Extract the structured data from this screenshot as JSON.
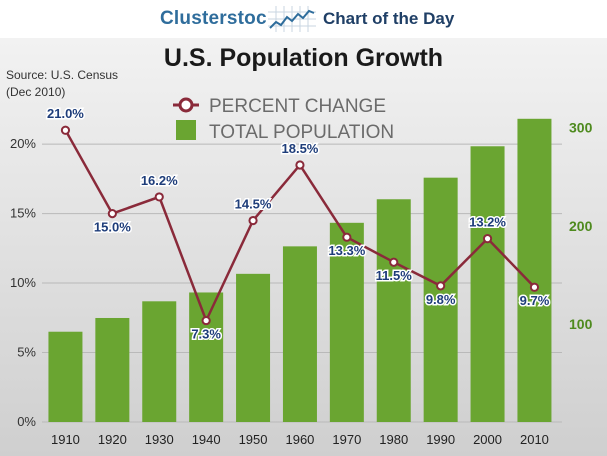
{
  "header": {
    "brand": "Clusterstock",
    "subtitle": "Chart of the Day"
  },
  "colors": {
    "bar": "#6aa531",
    "line": "#8a2a3a",
    "label": "#1e3d7a",
    "right_axis": "#4e8a1e",
    "left_axis": "#333333"
  },
  "chart_data": {
    "type": "bar",
    "title": "U.S. Population Growth",
    "source_line1": "Source: U.S. Census",
    "source_line2": "(Dec 2010)",
    "categories": [
      "1910",
      "1920",
      "1930",
      "1940",
      "1950",
      "1960",
      "1970",
      "1980",
      "1990",
      "2000",
      "2010"
    ],
    "series": [
      {
        "name": "TOTAL POPULATION",
        "type": "bar",
        "axis": "right",
        "values": [
          92,
          106,
          123,
          132,
          151,
          179,
          203,
          227,
          249,
          281,
          309
        ]
      },
      {
        "name": "PERCENT CHANGE",
        "type": "line",
        "axis": "left",
        "values": [
          21.0,
          15.0,
          16.2,
          7.3,
          14.5,
          18.5,
          13.3,
          11.5,
          9.8,
          13.2,
          9.7
        ],
        "labels": [
          "21.0%",
          "15.0%",
          "16.2%",
          "7.3%",
          "14.5%",
          "18.5%",
          "13.3%",
          "11.5%",
          "9.8%",
          "13.2%",
          "9.7%"
        ]
      }
    ],
    "left_axis": {
      "ylim": [
        0,
        22.6
      ],
      "ticks": [
        0,
        5,
        10,
        15,
        20
      ],
      "tick_labels": [
        "0%",
        "5%",
        "10%",
        "15%",
        "20%"
      ]
    },
    "right_axis": {
      "ylim": [
        0,
        320
      ],
      "ticks": [
        100,
        200,
        300
      ],
      "tick_labels": [
        "100",
        "200",
        "300"
      ]
    },
    "legend": {
      "position": "top-left",
      "items": [
        "PERCENT CHANGE",
        "TOTAL POPULATION"
      ]
    }
  }
}
